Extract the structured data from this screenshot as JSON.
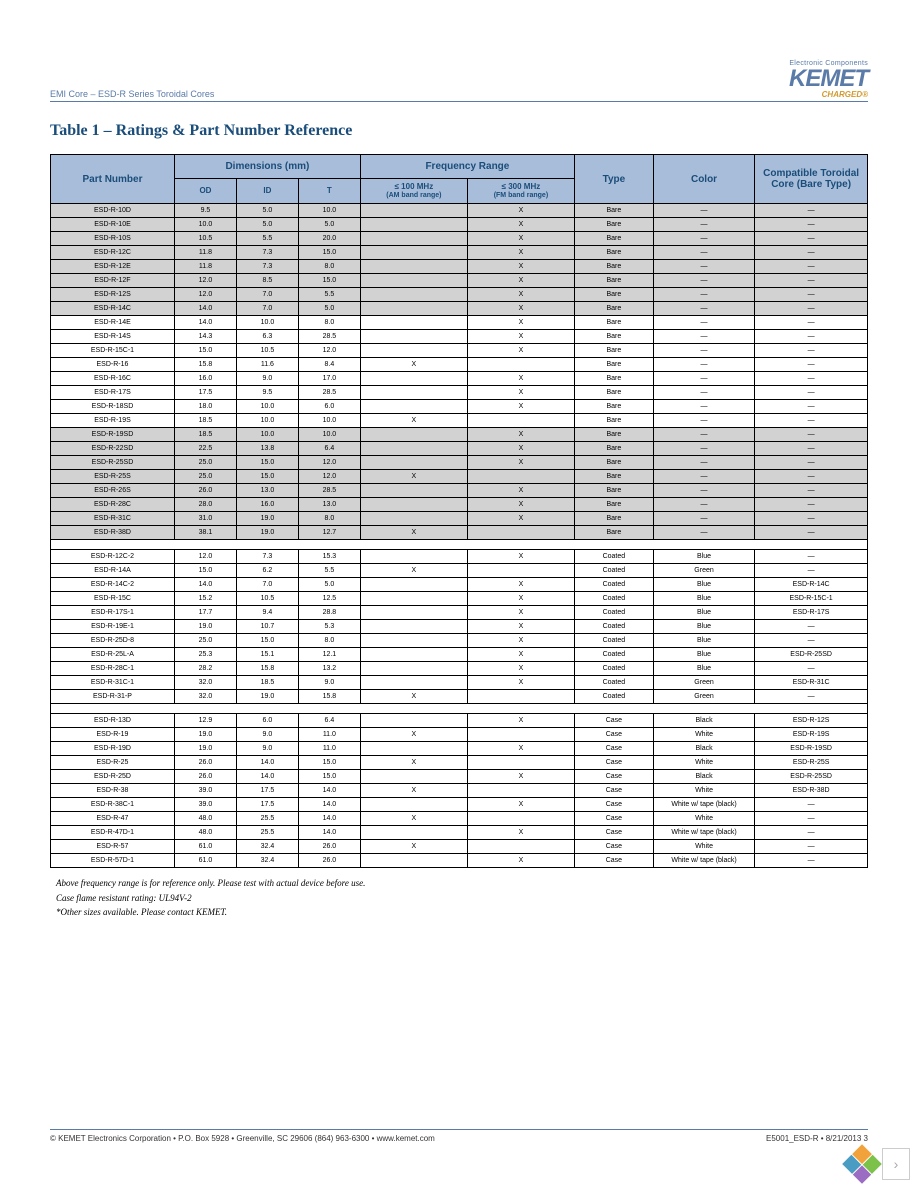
{
  "header": {
    "left": "EMI Core – ESD-R Series Toroidal Cores",
    "logo_tagline": "Electronic Components",
    "logo_main": "KEMET",
    "logo_sub": "CHARGED®"
  },
  "title": "Table 1 – Ratings & Part Number Reference",
  "columns": {
    "part_number": "Part Number",
    "dimensions": "Dimensions (mm)",
    "od": "OD",
    "id": "ID",
    "t": "T",
    "freq_range": "Frequency Range",
    "freq_100": "≤ 100 MHz",
    "freq_100_sub": "(AM band range)",
    "freq_300": "≤ 300 MHz",
    "freq_300_sub": "(FM band range)",
    "type": "Type",
    "color": "Color",
    "compat": "Compatible Toroidal Core (Bare Type)"
  },
  "sections": [
    {
      "rows": [
        {
          "shade": true,
          "pn": "ESD-R-10D",
          "od": "9.5",
          "id": "5.0",
          "t": "10.0",
          "f100": "",
          "f300": "X",
          "type": "Bare",
          "color": "—",
          "compat": "—"
        },
        {
          "shade": true,
          "pn": "ESD-R-10E",
          "od": "10.0",
          "id": "5.0",
          "t": "5.0",
          "f100": "",
          "f300": "X",
          "type": "Bare",
          "color": "—",
          "compat": "—"
        },
        {
          "shade": true,
          "pn": "ESD-R-10S",
          "od": "10.5",
          "id": "5.5",
          "t": "20.0",
          "f100": "",
          "f300": "X",
          "type": "Bare",
          "color": "—",
          "compat": "—"
        },
        {
          "shade": true,
          "pn": "ESD-R-12C",
          "od": "11.8",
          "id": "7.3",
          "t": "15.0",
          "f100": "",
          "f300": "X",
          "type": "Bare",
          "color": "—",
          "compat": "—"
        },
        {
          "shade": true,
          "pn": "ESD-R-12E",
          "od": "11.8",
          "id": "7.3",
          "t": "8.0",
          "f100": "",
          "f300": "X",
          "type": "Bare",
          "color": "—",
          "compat": "—"
        },
        {
          "shade": true,
          "pn": "ESD-R-12F",
          "od": "12.0",
          "id": "8.5",
          "t": "15.0",
          "f100": "",
          "f300": "X",
          "type": "Bare",
          "color": "—",
          "compat": "—"
        },
        {
          "shade": true,
          "pn": "ESD-R-12S",
          "od": "12.0",
          "id": "7.0",
          "t": "5.5",
          "f100": "",
          "f300": "X",
          "type": "Bare",
          "color": "—",
          "compat": "—"
        },
        {
          "shade": true,
          "pn": "ESD-R-14C",
          "od": "14.0",
          "id": "7.0",
          "t": "5.0",
          "f100": "",
          "f300": "X",
          "type": "Bare",
          "color": "—",
          "compat": "—"
        },
        {
          "shade": false,
          "pn": "ESD-R-14E",
          "od": "14.0",
          "id": "10.0",
          "t": "8.0",
          "f100": "",
          "f300": "X",
          "type": "Bare",
          "color": "—",
          "compat": "—"
        },
        {
          "shade": false,
          "pn": "ESD-R-14S",
          "od": "14.3",
          "id": "6.3",
          "t": "28.5",
          "f100": "",
          "f300": "X",
          "type": "Bare",
          "color": "—",
          "compat": "—"
        },
        {
          "shade": false,
          "pn": "ESD-R-15C-1",
          "od": "15.0",
          "id": "10.5",
          "t": "12.0",
          "f100": "",
          "f300": "X",
          "type": "Bare",
          "color": "—",
          "compat": "—"
        },
        {
          "shade": false,
          "pn": "ESD-R-16",
          "od": "15.8",
          "id": "11.6",
          "t": "8.4",
          "f100": "X",
          "f300": "",
          "type": "Bare",
          "color": "—",
          "compat": "—"
        },
        {
          "shade": false,
          "pn": "ESD-R-16C",
          "od": "16.0",
          "id": "9.0",
          "t": "17.0",
          "f100": "",
          "f300": "X",
          "type": "Bare",
          "color": "—",
          "compat": "—"
        },
        {
          "shade": false,
          "pn": "ESD-R-17S",
          "od": "17.5",
          "id": "9.5",
          "t": "28.5",
          "f100": "",
          "f300": "X",
          "type": "Bare",
          "color": "—",
          "compat": "—"
        },
        {
          "shade": false,
          "pn": "ESD-R-18SD",
          "od": "18.0",
          "id": "10.0",
          "t": "6.0",
          "f100": "",
          "f300": "X",
          "type": "Bare",
          "color": "—",
          "compat": "—"
        },
        {
          "shade": false,
          "pn": "ESD-R-19S",
          "od": "18.5",
          "id": "10.0",
          "t": "10.0",
          "f100": "X",
          "f300": "",
          "type": "Bare",
          "color": "—",
          "compat": "—"
        },
        {
          "shade": true,
          "pn": "ESD-R-19SD",
          "od": "18.5",
          "id": "10.0",
          "t": "10.0",
          "f100": "",
          "f300": "X",
          "type": "Bare",
          "color": "—",
          "compat": "—"
        },
        {
          "shade": true,
          "pn": "ESD-R-22SD",
          "od": "22.5",
          "id": "13.8",
          "t": "6.4",
          "f100": "",
          "f300": "X",
          "type": "Bare",
          "color": "—",
          "compat": "—"
        },
        {
          "shade": true,
          "pn": "ESD-R-25SD",
          "od": "25.0",
          "id": "15.0",
          "t": "12.0",
          "f100": "",
          "f300": "X",
          "type": "Bare",
          "color": "—",
          "compat": "—"
        },
        {
          "shade": true,
          "pn": "ESD-R-25S",
          "od": "25.0",
          "id": "15.0",
          "t": "12.0",
          "f100": "X",
          "f300": "",
          "type": "Bare",
          "color": "—",
          "compat": "—"
        },
        {
          "shade": true,
          "pn": "ESD-R-26S",
          "od": "26.0",
          "id": "13.0",
          "t": "28.5",
          "f100": "",
          "f300": "X",
          "type": "Bare",
          "color": "—",
          "compat": "—"
        },
        {
          "shade": true,
          "pn": "ESD-R-28C",
          "od": "28.0",
          "id": "16.0",
          "t": "13.0",
          "f100": "",
          "f300": "X",
          "type": "Bare",
          "color": "—",
          "compat": "—"
        },
        {
          "shade": true,
          "pn": "ESD-R-31C",
          "od": "31.0",
          "id": "19.0",
          "t": "8.0",
          "f100": "",
          "f300": "X",
          "type": "Bare",
          "color": "—",
          "compat": "—"
        },
        {
          "shade": true,
          "pn": "ESD-R-38D",
          "od": "38.1",
          "id": "19.0",
          "t": "12.7",
          "f100": "X",
          "f300": "",
          "type": "Bare",
          "color": "—",
          "compat": "—"
        }
      ]
    },
    {
      "rows": [
        {
          "shade": false,
          "pn": "ESD-R-12C-2",
          "od": "12.0",
          "id": "7.3",
          "t": "15.3",
          "f100": "",
          "f300": "X",
          "type": "Coated",
          "color": "Blue",
          "compat": "—"
        },
        {
          "shade": false,
          "pn": "ESD-R-14A",
          "od": "15.0",
          "id": "6.2",
          "t": "5.5",
          "f100": "X",
          "f300": "",
          "type": "Coated",
          "color": "Green",
          "compat": "—"
        },
        {
          "shade": false,
          "pn": "ESD-R-14C-2",
          "od": "14.0",
          "id": "7.0",
          "t": "5.0",
          "f100": "",
          "f300": "X",
          "type": "Coated",
          "color": "Blue",
          "compat": "ESD-R-14C"
        },
        {
          "shade": false,
          "pn": "ESD-R-15C",
          "od": "15.2",
          "id": "10.5",
          "t": "12.5",
          "f100": "",
          "f300": "X",
          "type": "Coated",
          "color": "Blue",
          "compat": "ESD-R-15C-1"
        },
        {
          "shade": false,
          "pn": "ESD-R-17S-1",
          "od": "17.7",
          "id": "9.4",
          "t": "28.8",
          "f100": "",
          "f300": "X",
          "type": "Coated",
          "color": "Blue",
          "compat": "ESD-R-17S"
        },
        {
          "shade": false,
          "pn": "ESD-R-19E-1",
          "od": "19.0",
          "id": "10.7",
          "t": "5.3",
          "f100": "",
          "f300": "X",
          "type": "Coated",
          "color": "Blue",
          "compat": "—"
        },
        {
          "shade": false,
          "pn": "ESD-R-25D-8",
          "od": "25.0",
          "id": "15.0",
          "t": "8.0",
          "f100": "",
          "f300": "X",
          "type": "Coated",
          "color": "Blue",
          "compat": "—"
        },
        {
          "shade": false,
          "pn": "ESD-R-25L-A",
          "od": "25.3",
          "id": "15.1",
          "t": "12.1",
          "f100": "",
          "f300": "X",
          "type": "Coated",
          "color": "Blue",
          "compat": "ESD-R-25SD"
        },
        {
          "shade": false,
          "pn": "ESD-R-28C-1",
          "od": "28.2",
          "id": "15.8",
          "t": "13.2",
          "f100": "",
          "f300": "X",
          "type": "Coated",
          "color": "Blue",
          "compat": "—"
        },
        {
          "shade": false,
          "pn": "ESD-R-31C-1",
          "od": "32.0",
          "id": "18.5",
          "t": "9.0",
          "f100": "",
          "f300": "X",
          "type": "Coated",
          "color": "Green",
          "compat": "ESD-R-31C"
        },
        {
          "shade": false,
          "pn": "ESD-R-31-P",
          "od": "32.0",
          "id": "19.0",
          "t": "15.8",
          "f100": "X",
          "f300": "",
          "type": "Coated",
          "color": "Green",
          "compat": "—"
        }
      ]
    },
    {
      "rows": [
        {
          "shade": false,
          "pn": "ESD-R-13D",
          "od": "12.9",
          "id": "6.0",
          "t": "6.4",
          "f100": "",
          "f300": "X",
          "type": "Case",
          "color": "Black",
          "compat": "ESD-R-12S"
        },
        {
          "shade": false,
          "pn": "ESD-R-19",
          "od": "19.0",
          "id": "9.0",
          "t": "11.0",
          "f100": "X",
          "f300": "",
          "type": "Case",
          "color": "White",
          "compat": "ESD-R-19S"
        },
        {
          "shade": false,
          "pn": "ESD-R-19D",
          "od": "19.0",
          "id": "9.0",
          "t": "11.0",
          "f100": "",
          "f300": "X",
          "type": "Case",
          "color": "Black",
          "compat": "ESD-R-19SD"
        },
        {
          "shade": false,
          "pn": "ESD-R-25",
          "od": "26.0",
          "id": "14.0",
          "t": "15.0",
          "f100": "X",
          "f300": "",
          "type": "Case",
          "color": "White",
          "compat": "ESD-R-25S"
        },
        {
          "shade": false,
          "pn": "ESD-R-25D",
          "od": "26.0",
          "id": "14.0",
          "t": "15.0",
          "f100": "",
          "f300": "X",
          "type": "Case",
          "color": "Black",
          "compat": "ESD-R-25SD"
        },
        {
          "shade": false,
          "pn": "ESD-R-38",
          "od": "39.0",
          "id": "17.5",
          "t": "14.0",
          "f100": "X",
          "f300": "",
          "type": "Case",
          "color": "White",
          "compat": "ESD-R-38D"
        },
        {
          "shade": false,
          "pn": "ESD-R-38C-1",
          "od": "39.0",
          "id": "17.5",
          "t": "14.0",
          "f100": "",
          "f300": "X",
          "type": "Case",
          "color": "White w/ tape (black)",
          "compat": "—"
        },
        {
          "shade": false,
          "pn": "ESD-R-47",
          "od": "48.0",
          "id": "25.5",
          "t": "14.0",
          "f100": "X",
          "f300": "",
          "type": "Case",
          "color": "White",
          "compat": "—"
        },
        {
          "shade": false,
          "pn": "ESD-R-47D-1",
          "od": "48.0",
          "id": "25.5",
          "t": "14.0",
          "f100": "",
          "f300": "X",
          "type": "Case",
          "color": "White w/ tape (black)",
          "compat": "—"
        },
        {
          "shade": false,
          "pn": "ESD-R-57",
          "od": "61.0",
          "id": "32.4",
          "t": "26.0",
          "f100": "X",
          "f300": "",
          "type": "Case",
          "color": "White",
          "compat": "—"
        },
        {
          "shade": false,
          "pn": "ESD-R-57D-1",
          "od": "61.0",
          "id": "32.4",
          "t": "26.0",
          "f100": "",
          "f300": "X",
          "type": "Case",
          "color": "White w/ tape (black)",
          "compat": "—"
        }
      ]
    }
  ],
  "footnotes": [
    "Above frequency range is for reference only. Please test with actual device before use.",
    "Case flame resistant rating: UL94V-2",
    "*Other sizes available. Please contact KEMET."
  ],
  "footer": {
    "left": "© KEMET Electronics Corporation • P.O. Box 5928 • Greenville, SC 29606 (864) 963-6300 • www.kemet.com",
    "right": "E5001_ESD-R • 8/21/2013     3"
  }
}
